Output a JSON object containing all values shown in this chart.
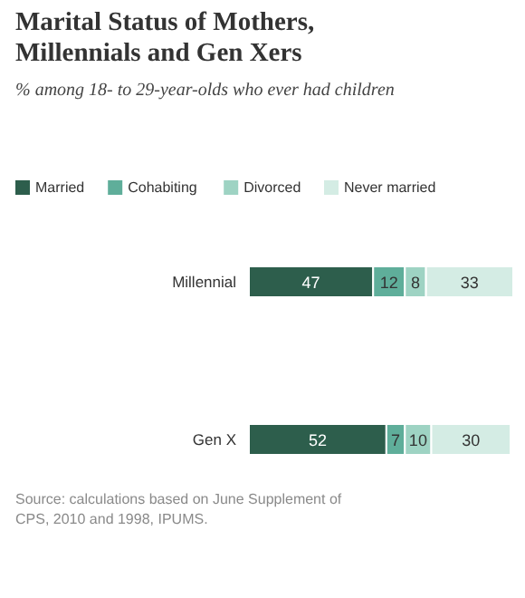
{
  "chart_data": {
    "type": "bar",
    "orientation": "horizontal",
    "stacked": true,
    "data_labels": true,
    "title": "Marital Status of Mothers, Millennials and Gen Xers",
    "subtitle": "% among 18- to 29-year-olds who ever had children",
    "categories": [
      "Millennial",
      "Gen X"
    ],
    "series": [
      {
        "name": "Married",
        "color": "#2d5e4c",
        "values": [
          47,
          52
        ]
      },
      {
        "name": "Cohabiting",
        "color": "#5fae9a",
        "values": [
          12,
          7
        ]
      },
      {
        "name": "Divorced",
        "color": "#9ed3c3",
        "values": [
          8,
          10
        ]
      },
      {
        "name": "Never married",
        "color": "#d4ece4",
        "values": [
          33,
          30
        ]
      }
    ],
    "legend": "top",
    "annotations": [
      "Source: calculations based on June Supplement of CPS, 2010 and 1998, IPUMS."
    ]
  }
}
